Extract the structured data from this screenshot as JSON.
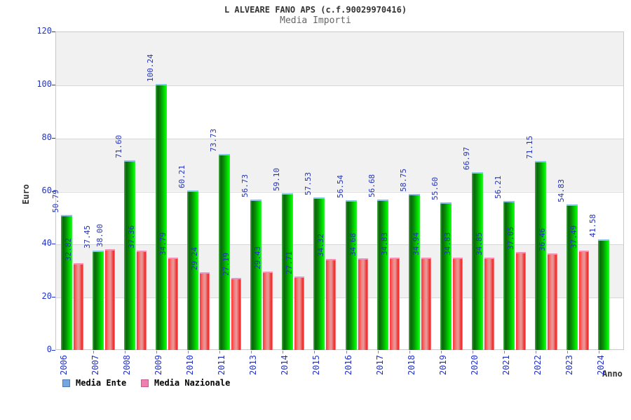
{
  "header": {
    "title": "L ALVEARE FANO APS (c.f.90029970416)",
    "subtitle": "Media Importi"
  },
  "axes": {
    "y_label": "Euro",
    "x_label": "Anno",
    "y_ticks": [
      0,
      20,
      40,
      60,
      80,
      100,
      120
    ]
  },
  "legend": [
    {
      "label": "Media Ente",
      "swatch": "#74a7e0",
      "swatch_border": "#4a7ab5"
    },
    {
      "label": "Media Nazionale",
      "swatch": "#ee7fb0",
      "swatch_border": "#c85a8e"
    }
  ],
  "colors": {
    "bar_ente_main": "#00cc00",
    "bar_ente_cap": "#8cc4f0",
    "bar_nazionale_main": "#ee3333",
    "bar_nazionale_cap": "#f490be",
    "value_label": "#2233bb",
    "tick_label": "#2233cc",
    "band_gray": "#f1f1f1"
  },
  "chart_data": {
    "type": "bar",
    "title": "L ALVEARE FANO APS (c.f.90029970416)",
    "subtitle": "Media Importi",
    "xlabel": "Anno",
    "ylabel": "Euro",
    "ylim": [
      0,
      120
    ],
    "grid": true,
    "gray_bands": [
      [
        20,
        40
      ],
      [
        60,
        80
      ],
      [
        100,
        120
      ]
    ],
    "legend_position": "bottom",
    "value_label_decimals": 2,
    "categories": [
      "2006",
      "2007",
      "2008",
      "2009",
      "2010",
      "2011",
      "2013",
      "2014",
      "2015",
      "2016",
      "2017",
      "2018",
      "2019",
      "2020",
      "2021",
      "2022",
      "2023",
      "2024"
    ],
    "series": [
      {
        "name": "Media Ente",
        "values": [
          50.79,
          37.45,
          71.6,
          100.24,
          60.21,
          73.73,
          56.73,
          59.1,
          57.53,
          56.54,
          56.68,
          58.75,
          55.6,
          66.97,
          56.21,
          71.15,
          54.83,
          41.58
        ]
      },
      {
        "name": "Media Nazionale",
        "values": [
          32.82,
          38.0,
          37.36,
          34.79,
          29.24,
          27.19,
          29.43,
          27.71,
          34.32,
          34.68,
          34.83,
          34.94,
          34.83,
          34.85,
          37.05,
          36.46,
          37.49,
          null
        ]
      }
    ]
  }
}
